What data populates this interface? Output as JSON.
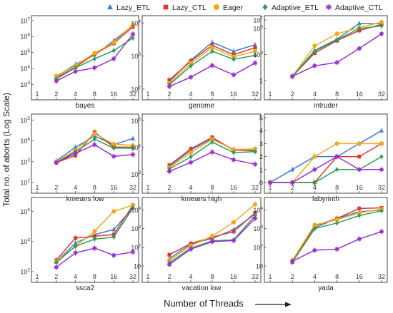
{
  "figure": {
    "ylabel": "Total no. of aborts (Log Scale)",
    "xlabel": "Number of Threads"
  },
  "legend": [
    {
      "name": "Lazy_ETL",
      "color": "#3b7dd8",
      "marker": "triangle"
    },
    {
      "name": "Lazy_CTL",
      "color": "#d93a2b",
      "marker": "square"
    },
    {
      "name": "Eager",
      "color": "#f2a71b",
      "marker": "circle"
    },
    {
      "name": "Adaptive_ETL",
      "color": "#2e9e55",
      "marker": "diamond"
    },
    {
      "name": "Adaptive_CTL",
      "color": "#9a2fd6",
      "marker": "star"
    }
  ],
  "chart_data": [
    {
      "type": "line",
      "title": "bayes",
      "x": [
        1,
        2,
        4,
        8,
        16,
        32
      ],
      "xticks": [
        "1",
        "2",
        "4",
        "8",
        "16",
        "32"
      ],
      "yscale": "log",
      "ylim": [
        500,
        12000000
      ],
      "yticks": [
        {
          "v": 1000,
          "base": "10",
          "exp": "3"
        },
        {
          "v": 10000,
          "base": "10",
          "exp": "4"
        },
        {
          "v": 100000,
          "base": "10",
          "exp": "5"
        },
        {
          "v": 1000000,
          "base": "10",
          "exp": "6"
        },
        {
          "v": 10000000,
          "base": "10",
          "exp": "7"
        }
      ],
      "series": [
        {
          "name": "Lazy_ETL",
          "values": [
            null,
            3000,
            18000,
            70000,
            550000,
            5000000
          ]
        },
        {
          "name": "Lazy_CTL",
          "values": [
            null,
            2600,
            12000,
            80000,
            370000,
            4000000
          ]
        },
        {
          "name": "Eager",
          "values": [
            null,
            3300,
            15000,
            90000,
            420000,
            5500000
          ]
        },
        {
          "name": "Adaptive_ETL",
          "values": [
            null,
            2200,
            11000,
            40000,
            130000,
            800000
          ]
        },
        {
          "name": "Adaptive_CTL",
          "values": [
            null,
            1600,
            6500,
            11000,
            40000,
            1400000
          ]
        }
      ]
    },
    {
      "type": "line",
      "title": "genome",
      "x": [
        1,
        2,
        4,
        8,
        16,
        32
      ],
      "xticks": [
        "1",
        "2",
        "4",
        "8",
        "16",
        "32"
      ],
      "yscale": "log",
      "ylim": [
        100,
        13000
      ],
      "yticks": [
        {
          "v": 100,
          "base": "10",
          "exp": "2"
        },
        {
          "v": 1000,
          "base": "10",
          "exp": "3"
        },
        {
          "v": 10000,
          "base": "10",
          "exp": "4"
        }
      ],
      "series": [
        {
          "name": "Lazy_ETL",
          "values": [
            null,
            170,
            750,
            2600,
            1400,
            2200
          ]
        },
        {
          "name": "Lazy_CTL",
          "values": [
            null,
            190,
            700,
            2100,
            1100,
            1800
          ]
        },
        {
          "name": "Eager",
          "values": [
            null,
            150,
            600,
            1800,
            950,
            1400
          ]
        },
        {
          "name": "Adaptive_ETL",
          "values": [
            null,
            135,
            500,
            1400,
            800,
            1050
          ]
        },
        {
          "name": "Adaptive_CTL",
          "values": [
            null,
            120,
            230,
            520,
            270,
            620
          ]
        }
      ]
    },
    {
      "type": "line",
      "title": "intruder",
      "x": [
        1,
        2,
        4,
        8,
        16,
        32
      ],
      "xticks": [
        "1",
        "2",
        "4",
        "8",
        "16",
        "32"
      ],
      "yscale": "log",
      "ylim": [
        0.1,
        12000000
      ],
      "yticks": [
        {
          "v": 1,
          "label": "1"
        },
        {
          "v": 1000,
          "base": "10",
          "exp": "3"
        },
        {
          "v": 1000000,
          "base": "10",
          "exp": "6"
        },
        {
          "v": 10000000,
          "base": "10",
          "exp": "7"
        }
      ],
      "series": [
        {
          "name": "Lazy_ETL",
          "values": [
            null,
            3,
            3000,
            60000,
            4000000,
            3500000
          ]
        },
        {
          "name": "Lazy_CTL",
          "values": [
            null,
            3,
            1500,
            40000,
            600000,
            3000000
          ]
        },
        {
          "name": "Eager",
          "values": [
            null,
            3,
            10000,
            250000,
            1300000,
            5500000
          ]
        },
        {
          "name": "Adaptive_ETL",
          "values": [
            null,
            3,
            2500,
            50000,
            1000000,
            2000000
          ]
        },
        {
          "name": "Adaptive_CTL",
          "values": [
            null,
            3,
            50,
            120,
            5000,
            250000
          ]
        }
      ]
    },
    {
      "type": "line",
      "title": "kmeans low",
      "x": [
        1,
        2,
        4,
        8,
        16,
        32
      ],
      "xticks": [
        "1",
        "2",
        "4",
        "8",
        "16",
        "32"
      ],
      "yscale": "log",
      "ylim": [
        100,
        130000
      ],
      "yticks": [
        {
          "v": 100,
          "base": "10",
          "exp": "2"
        },
        {
          "v": 1000,
          "base": "10",
          "exp": "3"
        },
        {
          "v": 10000,
          "base": "10",
          "exp": "4"
        },
        {
          "v": 100000,
          "base": "10",
          "exp": "5"
        }
      ],
      "series": [
        {
          "name": "Lazy_ETL",
          "values": [
            null,
            1100,
            5000,
            17000,
            6500,
            13000
          ]
        },
        {
          "name": "Lazy_CTL",
          "values": [
            null,
            900,
            2000,
            26000,
            5000,
            5000
          ]
        },
        {
          "name": "Eager",
          "values": [
            null,
            1000,
            3500,
            22000,
            7000,
            6000
          ]
        },
        {
          "name": "Adaptive_ETL",
          "values": [
            null,
            900,
            3000,
            12000,
            4500,
            4500
          ]
        },
        {
          "name": "Adaptive_CTL",
          "values": [
            null,
            900,
            2500,
            6500,
            1800,
            2200
          ]
        }
      ]
    },
    {
      "type": "line",
      "title": "kmeans high",
      "x": [
        1,
        2,
        4,
        8,
        16,
        32
      ],
      "xticks": [
        "1",
        "2",
        "4",
        "8",
        "16",
        "32"
      ],
      "yscale": "log",
      "ylim": [
        500,
        130000
      ],
      "yticks": [
        {
          "v": 1000,
          "base": "10",
          "exp": "3"
        },
        {
          "v": 10000,
          "base": "10",
          "exp": "4"
        },
        {
          "v": 100000,
          "base": "10",
          "exp": "5"
        }
      ],
      "series": [
        {
          "name": "Lazy_ETL",
          "values": [
            null,
            2000,
            8000,
            22000,
            8500,
            7500
          ]
        },
        {
          "name": "Lazy_CTL",
          "values": [
            null,
            2200,
            9000,
            24000,
            8000,
            8000
          ]
        },
        {
          "name": "Eager",
          "values": [
            null,
            1800,
            6500,
            20000,
            8500,
            9000
          ]
        },
        {
          "name": "Adaptive_ETL",
          "values": [
            null,
            1600,
            4500,
            16000,
            6500,
            7000
          ]
        },
        {
          "name": "Adaptive_CTL",
          "values": [
            null,
            1300,
            2800,
            6800,
            3500,
            2400
          ]
        }
      ]
    },
    {
      "type": "line",
      "title": "labyrinth",
      "x": [
        1,
        2,
        4,
        8,
        16,
        32
      ],
      "xticks": [
        "1",
        "2",
        "4",
        "8",
        "16",
        "32"
      ],
      "yscale": "linear",
      "ylim": [
        0,
        5
      ],
      "yticks": [
        {
          "v": 0,
          "label": "0"
        },
        {
          "v": 1,
          "label": "1"
        },
        {
          "v": 2,
          "label": "2"
        },
        {
          "v": 3,
          "label": "3"
        },
        {
          "v": 4,
          "label": "4"
        },
        {
          "v": 5,
          "label": "5"
        }
      ],
      "series": [
        {
          "name": "Lazy_ETL",
          "values": [
            0,
            1,
            2,
            2,
            3,
            4
          ]
        },
        {
          "name": "Lazy_CTL",
          "values": [
            0,
            0,
            0,
            2,
            2,
            3
          ]
        },
        {
          "name": "Eager",
          "values": [
            0,
            0,
            2,
            3,
            3,
            3
          ]
        },
        {
          "name": "Adaptive_ETL",
          "values": [
            0,
            0,
            0,
            1,
            1,
            2
          ]
        },
        {
          "name": "Adaptive_CTL",
          "values": [
            0,
            0,
            1,
            2,
            1,
            1
          ]
        }
      ]
    },
    {
      "type": "line",
      "title": "ssca2",
      "x": [
        1,
        2,
        4,
        8,
        16,
        32
      ],
      "xticks": [
        "1",
        "2",
        "4",
        "8",
        "16",
        "32"
      ],
      "yscale": "log",
      "ylim": [
        100,
        22000
      ],
      "yticks": [
        {
          "v": 100,
          "base": "10",
          "exp": "2"
        },
        {
          "v": 1000,
          "base": "10",
          "exp": "3"
        },
        {
          "v": 10000,
          "base": "10",
          "exp": "4"
        }
      ],
      "series": [
        {
          "name": "Lazy_ETL",
          "values": [
            null,
            210,
            900,
            1700,
            2500,
            13000
          ]
        },
        {
          "name": "Lazy_CTL",
          "values": [
            null,
            240,
            1300,
            1500,
            1700,
            16000
          ]
        },
        {
          "name": "Eager",
          "values": [
            null,
            220,
            700,
            2200,
            10000,
            16000
          ]
        },
        {
          "name": "Adaptive_ETL",
          "values": [
            null,
            200,
            700,
            1200,
            1400,
            13000
          ]
        },
        {
          "name": "Adaptive_CTL",
          "values": [
            null,
            140,
            420,
            600,
            350,
            450
          ]
        }
      ]
    },
    {
      "type": "line",
      "title": "vacation low",
      "x": [
        1,
        2,
        4,
        8,
        16,
        32
      ],
      "xticks": [
        "1",
        "2",
        "4",
        "8",
        "16",
        "32"
      ],
      "yscale": "log",
      "ylim": [
        5,
        30000
      ],
      "yticks": [
        {
          "v": 10,
          "label": "10"
        },
        {
          "v": 100,
          "base": "10",
          "exp": "2"
        },
        {
          "v": 1000,
          "base": "10",
          "exp": "3"
        },
        {
          "v": 10000,
          "base": "10",
          "exp": "4"
        }
      ],
      "series": [
        {
          "name": "Lazy_ETL",
          "values": [
            null,
            25,
            150,
            300,
            900,
            6000
          ]
        },
        {
          "name": "Lazy_CTL",
          "values": [
            null,
            40,
            160,
            350,
            700,
            7000
          ]
        },
        {
          "name": "Eager",
          "values": [
            null,
            20,
            120,
            400,
            2200,
            20000
          ]
        },
        {
          "name": "Adaptive_ETL",
          "values": [
            null,
            15,
            90,
            220,
            250,
            5000
          ]
        },
        {
          "name": "Adaptive_CTL",
          "values": [
            null,
            12,
            80,
            200,
            230,
            3500
          ]
        }
      ]
    },
    {
      "type": "line",
      "title": "yada",
      "x": [
        1,
        2,
        4,
        8,
        16,
        32
      ],
      "xticks": [
        "1",
        "2",
        "4",
        "8",
        "16",
        "32"
      ],
      "yscale": "log",
      "ylim": [
        5,
        30000
      ],
      "yticks": [
        {
          "v": 10,
          "label": "10"
        },
        {
          "v": 100,
          "base": "10",
          "exp": "2"
        },
        {
          "v": 1000,
          "base": "10",
          "exp": "3"
        },
        {
          "v": 10000,
          "base": "10",
          "exp": "4"
        }
      ],
      "series": [
        {
          "name": "Lazy_ETL",
          "values": [
            null,
            16,
            1100,
            3500,
            8000,
            10000
          ]
        },
        {
          "name": "Lazy_CTL",
          "values": [
            null,
            18,
            1400,
            3500,
            12000,
            13000
          ]
        },
        {
          "name": "Eager",
          "values": [
            null,
            20,
            1600,
            3000,
            7000,
            11000
          ]
        },
        {
          "name": "Adaptive_ETL",
          "values": [
            null,
            16,
            1000,
            2000,
            5000,
            9000
          ]
        },
        {
          "name": "Adaptive_CTL",
          "values": [
            null,
            18,
            70,
            80,
            280,
            700
          ]
        }
      ]
    }
  ]
}
